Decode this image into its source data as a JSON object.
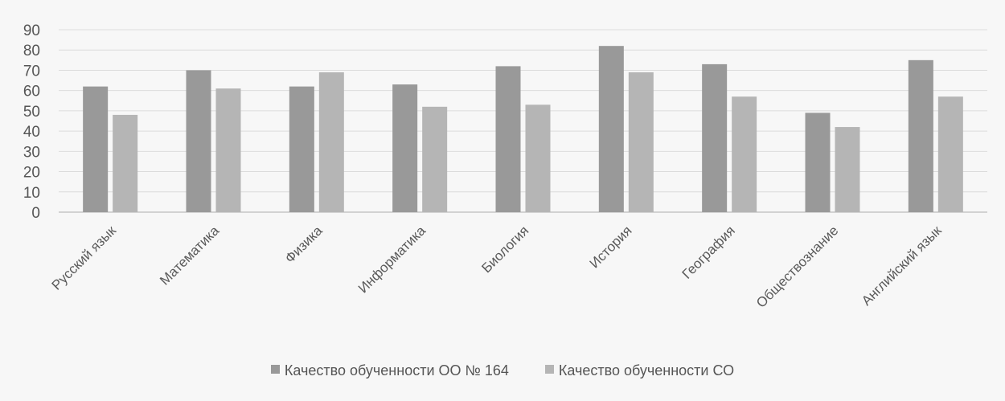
{
  "chart_data": {
    "type": "bar",
    "categories": [
      "Русский язык",
      "Математика",
      "Физика",
      "Информатика",
      "Биология",
      "История",
      "География",
      "Обществознание",
      "Английский язык"
    ],
    "series": [
      {
        "name": "Качество обученности ОО № 164",
        "values": [
          62,
          70,
          62,
          63,
          72,
          82,
          73,
          49,
          75
        ],
        "color": "#999999"
      },
      {
        "name": "Качество обученности СО",
        "values": [
          48,
          61,
          69,
          52,
          53,
          69,
          57,
          42,
          57
        ],
        "color": "#b5b5b5"
      }
    ],
    "ylim": [
      0,
      90
    ],
    "yticks": [
      0,
      10,
      20,
      30,
      40,
      50,
      60,
      70,
      80,
      90
    ],
    "grid": true,
    "legend": "bottom",
    "xlabel": "",
    "ylabel": "",
    "title": ""
  }
}
